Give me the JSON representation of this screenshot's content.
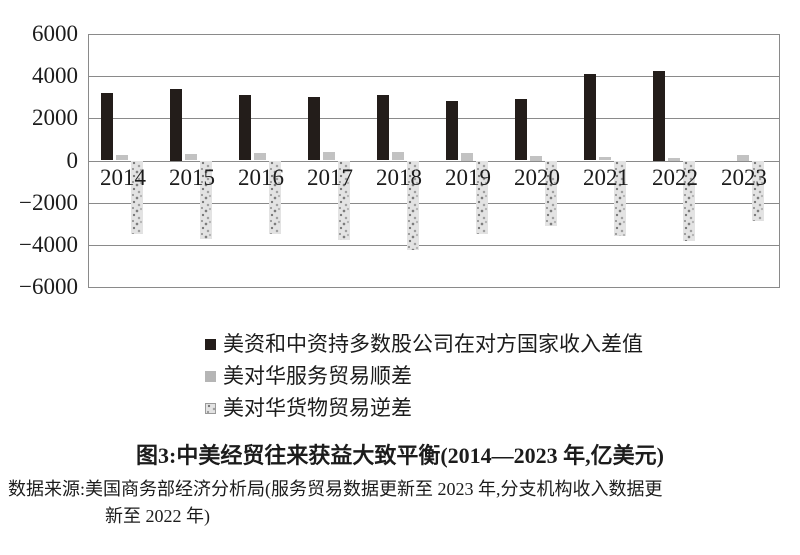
{
  "figure": {
    "title": "图3:中美经贸往来获益大致平衡(2014—2023 年,亿美元)",
    "source_line1": "数据来源:美国商务部经济分析局(服务贸易数据更新至 2023 年,分支机构收入数据更",
    "source_line2": "新至 2022 年)"
  },
  "chart_data": {
    "type": "bar",
    "title": "图3:中美经贸往来获益大致平衡(2014—2023年,亿美元)",
    "unit": "亿美元",
    "categories": [
      "2014",
      "2015",
      "2016",
      "2017",
      "2018",
      "2019",
      "2020",
      "2021",
      "2022",
      "2023"
    ],
    "series": [
      {
        "name": "美资和中资持多数股公司在对方国家收入差值",
        "style": "solid-black",
        "color": "#231d1a",
        "values": [
          3200,
          3400,
          3100,
          3000,
          3100,
          2800,
          2900,
          4100,
          4250,
          null
        ]
      },
      {
        "name": "美对华服务贸易顺差",
        "style": "solid-gray",
        "color": "#c2c2c2",
        "values": [
          250,
          290,
          350,
          390,
          390,
          360,
          230,
          150,
          130,
          270
        ]
      },
      {
        "name": "美对华货物贸易逆差",
        "style": "speckled",
        "color": "#e3e3e3",
        "values": [
          -3450,
          -3700,
          -3450,
          -3750,
          -4200,
          -3450,
          -3100,
          -3550,
          -3800,
          -2850
        ]
      }
    ],
    "ylim": [
      -6000,
      6000
    ],
    "yticks": [
      6000,
      4000,
      2000,
      0,
      -2000,
      -4000,
      -6000
    ],
    "ytick_labels": [
      "6000",
      "4000",
      "2000",
      "0",
      "−2000",
      "−4000",
      "−6000"
    ],
    "grid": true,
    "legend_position": "bottom-left"
  }
}
